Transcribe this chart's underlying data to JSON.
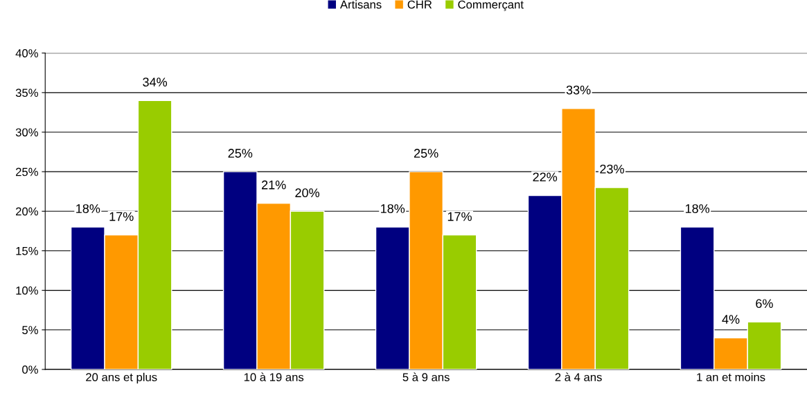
{
  "chart_data": {
    "type": "bar",
    "categories": [
      "20 ans et plus",
      "10 à 19 ans",
      "5 à 9 ans",
      "2 à 4 ans",
      "1 an et moins"
    ],
    "series": [
      {
        "name": "Artisans",
        "color": "#000080",
        "values": [
          18,
          25,
          18,
          22,
          18
        ],
        "value_labels": [
          "18%",
          "25%",
          "18%",
          "22%",
          "18%"
        ]
      },
      {
        "name": "CHR",
        "color": "#ff9900",
        "values": [
          17,
          21,
          25,
          33,
          4
        ],
        "value_labels": [
          "17%",
          "21%",
          "25%",
          "33%",
          "4%"
        ]
      },
      {
        "name": "Commerçant",
        "color": "#99cc00",
        "values": [
          34,
          20,
          17,
          23,
          6
        ],
        "value_labels": [
          "34%",
          "20%",
          "17%",
          "23%",
          "6%"
        ]
      }
    ],
    "ylim": [
      0,
      40
    ],
    "yticks": [
      {
        "value": 0,
        "label": "0%"
      },
      {
        "value": 5,
        "label": "5%"
      },
      {
        "value": 10,
        "label": "10%"
      },
      {
        "value": 15,
        "label": "15%"
      },
      {
        "value": 20,
        "label": "20%"
      },
      {
        "value": 25,
        "label": "25%"
      },
      {
        "value": 30,
        "label": "30%"
      },
      {
        "value": 35,
        "label": "35%"
      },
      {
        "value": 40,
        "label": "40%"
      }
    ],
    "grid": "y",
    "legend": "top"
  }
}
